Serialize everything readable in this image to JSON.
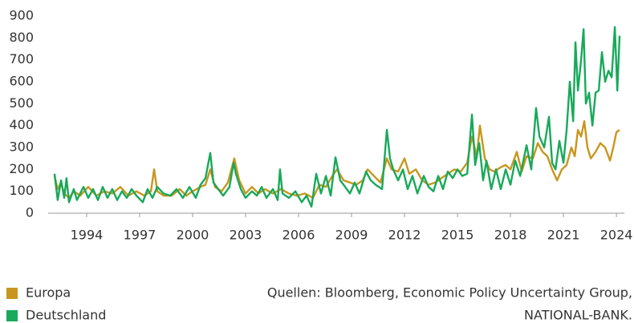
{
  "chart_data": {
    "type": "line",
    "xlim": [
      1991.82,
      2024.45
    ],
    "xticks": [
      1994,
      1997,
      2000,
      2003,
      2006,
      2009,
      2012,
      2015,
      2018,
      2021,
      2024
    ],
    "ylim": [
      0,
      900
    ],
    "yticks": [
      0,
      100,
      200,
      300,
      400,
      500,
      600,
      700,
      800,
      900
    ],
    "source": [
      "Quellen: Bloomberg, Economic Policy Uncertainty Group,",
      "NATIONAL-BANK."
    ],
    "series": [
      {
        "name": "Europa",
        "color": "#c8961e",
        "x": [
          1992.18,
          1992.36,
          1992.55,
          1992.73,
          1993.0,
          1993.27,
          1993.64,
          1994.09,
          1994.55,
          1995.0,
          1995.45,
          1995.91,
          1996.36,
          1996.82,
          1997.27,
          1997.64,
          1997.82,
          1998.0,
          1998.36,
          1998.82,
          1999.27,
          1999.64,
          2000.0,
          2000.45,
          2000.73,
          2001.0,
          2001.27,
          2001.64,
          2002.0,
          2002.36,
          2002.64,
          2003.0,
          2003.36,
          2003.73,
          2004.09,
          2004.55,
          2005.0,
          2005.45,
          2005.91,
          2006.36,
          2006.82,
          2007.18,
          2007.55,
          2007.91,
          2008.18,
          2008.55,
          2008.91,
          2009.27,
          2009.64,
          2009.91,
          2010.27,
          2010.64,
          2011.0,
          2011.27,
          2011.64,
          2012.0,
          2012.27,
          2012.64,
          2013.0,
          2013.36,
          2013.73,
          2014.09,
          2014.45,
          2014.82,
          2015.18,
          2015.55,
          2015.82,
          2016.09,
          2016.27,
          2016.55,
          2016.82,
          2017.09,
          2017.45,
          2017.73,
          2018.0,
          2018.36,
          2018.64,
          2018.91,
          2019.27,
          2019.55,
          2019.82,
          2020.09,
          2020.36,
          2020.64,
          2020.91,
          2021.18,
          2021.45,
          2021.64,
          2021.82,
          2022.0,
          2022.18,
          2022.36,
          2022.55,
          2022.82,
          2023.09,
          2023.36,
          2023.64,
          2023.82,
          2024.0,
          2024.18
        ],
        "values": [
          170,
          110,
          140,
          90,
          70,
          100,
          80,
          120,
          80,
          100,
          90,
          120,
          80,
          100,
          80,
          100,
          200,
          100,
          80,
          80,
          110,
          80,
          100,
          120,
          130,
          200,
          120,
          100,
          140,
          250,
          150,
          90,
          120,
          90,
          110,
          90,
          110,
          90,
          80,
          90,
          70,
          130,
          120,
          170,
          200,
          150,
          140,
          130,
          150,
          200,
          170,
          140,
          250,
          200,
          190,
          250,
          180,
          200,
          150,
          130,
          140,
          160,
          180,
          200,
          190,
          230,
          350,
          260,
          400,
          250,
          200,
          190,
          210,
          220,
          200,
          280,
          190,
          260,
          250,
          320,
          280,
          260,
          200,
          150,
          200,
          220,
          300,
          260,
          380,
          350,
          420,
          300,
          250,
          280,
          320,
          300,
          240,
          300,
          370,
          380
        ]
      },
      {
        "name": "Deutschland",
        "color": "#18a95a",
        "x": [
          1992.18,
          1992.36,
          1992.55,
          1992.73,
          1992.86,
          1993.0,
          1993.27,
          1993.45,
          1993.82,
          1994.09,
          1994.36,
          1994.64,
          1994.91,
          1995.18,
          1995.45,
          1995.73,
          1996.0,
          1996.27,
          1996.55,
          1996.82,
          1997.18,
          1997.45,
          1997.73,
          1998.0,
          1998.36,
          1998.73,
          1999.09,
          1999.45,
          1999.82,
          2000.18,
          2000.45,
          2000.73,
          2001.0,
          2001.18,
          2001.45,
          2001.73,
          2002.09,
          2002.32,
          2002.45,
          2002.73,
          2003.0,
          2003.36,
          2003.64,
          2003.91,
          2004.18,
          2004.55,
          2004.82,
          2004.95,
          2005.09,
          2005.45,
          2005.82,
          2006.18,
          2006.45,
          2006.73,
          2007.0,
          2007.27,
          2007.55,
          2007.82,
          2008.09,
          2008.36,
          2008.64,
          2008.91,
          2009.18,
          2009.45,
          2009.82,
          2010.09,
          2010.36,
          2010.73,
          2011.0,
          2011.18,
          2011.36,
          2011.64,
          2011.91,
          2012.18,
          2012.45,
          2012.73,
          2013.09,
          2013.36,
          2013.64,
          2013.91,
          2014.18,
          2014.45,
          2014.73,
          2015.0,
          2015.27,
          2015.55,
          2015.82,
          2016.0,
          2016.23,
          2016.45,
          2016.64,
          2016.91,
          2017.18,
          2017.45,
          2017.73,
          2018.0,
          2018.27,
          2018.55,
          2018.91,
          2019.18,
          2019.45,
          2019.64,
          2019.91,
          2020.18,
          2020.36,
          2020.55,
          2020.77,
          2021.0,
          2021.18,
          2021.36,
          2021.55,
          2021.68,
          2021.82,
          2022.0,
          2022.14,
          2022.27,
          2022.45,
          2022.64,
          2022.82,
          2023.0,
          2023.18,
          2023.36,
          2023.55,
          2023.73,
          2023.91,
          2024.05,
          2024.18
        ],
        "values": [
          180,
          60,
          150,
          70,
          160,
          50,
          110,
          60,
          120,
          70,
          110,
          60,
          120,
          70,
          110,
          60,
          100,
          70,
          110,
          80,
          50,
          110,
          70,
          120,
          90,
          80,
          110,
          70,
          120,
          70,
          130,
          160,
          275,
          140,
          110,
          80,
          120,
          230,
          180,
          110,
          70,
          100,
          80,
          120,
          70,
          110,
          60,
          200,
          90,
          70,
          100,
          50,
          80,
          30,
          180,
          90,
          170,
          80,
          255,
          150,
          120,
          90,
          140,
          90,
          190,
          150,
          130,
          110,
          380,
          250,
          200,
          150,
          200,
          110,
          170,
          90,
          170,
          120,
          100,
          170,
          110,
          190,
          160,
          200,
          170,
          180,
          450,
          220,
          320,
          150,
          240,
          110,
          200,
          110,
          200,
          130,
          240,
          170,
          310,
          200,
          480,
          350,
          300,
          440,
          230,
          200,
          330,
          230,
          380,
          600,
          420,
          780,
          560,
          700,
          840,
          500,
          550,
          400,
          550,
          560,
          735,
          600,
          650,
          620,
          850,
          560,
          810
        ]
      }
    ]
  }
}
